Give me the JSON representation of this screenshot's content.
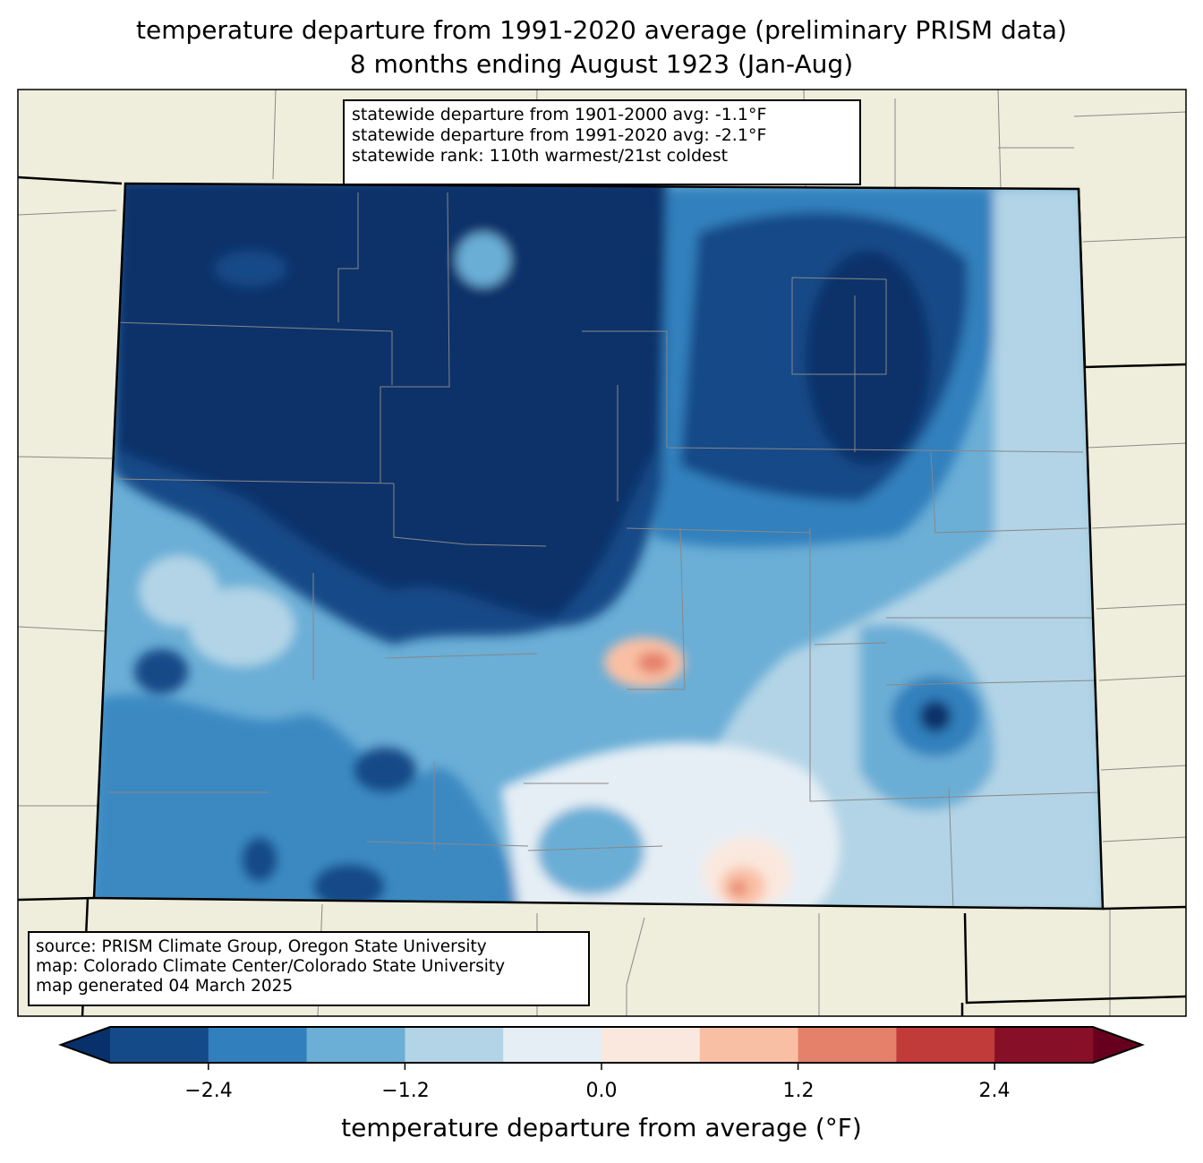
{
  "title": {
    "line1": "temperature departure from 1991-2020 average (preliminary PRISM data)",
    "line2": "8 months ending August 1923 (Jan-Aug)"
  },
  "stats_box": {
    "line1": "statewide departure from 1901-2000 avg: -1.1°F",
    "line2": "statewide departure from 1991-2020 avg: -2.1°F",
    "line3": "statewide rank: 110th warmest/21st coldest"
  },
  "source_box": {
    "line1": "source: PRISM Climate Group, Oregon State University",
    "line2": "map: Colorado Climate Center/Colorado State University",
    "line3": "map generated 04 March 2025"
  },
  "colorbar": {
    "label": "temperature departure from average (°F)",
    "ticks": [
      "−2.4",
      "−1.2",
      "0.0",
      "1.2",
      "2.4"
    ],
    "tick_values": [
      -2.4,
      -1.2,
      0.0,
      1.2,
      2.4
    ],
    "bounds": [
      -3.0,
      -2.4,
      -1.8,
      -1.2,
      -0.6,
      0.0,
      0.6,
      1.2,
      1.8,
      2.4,
      3.0
    ],
    "colors": [
      "#144a87",
      "#3180bd",
      "#6baed6",
      "#b2d4e6",
      "#e5eef5",
      "#fae8de",
      "#f9bfa4",
      "#e5806a",
      "#c23b3b",
      "#870f27"
    ],
    "under_color": "#08306b",
    "over_color": "#67001f"
  },
  "land_color": "#efeedc"
}
